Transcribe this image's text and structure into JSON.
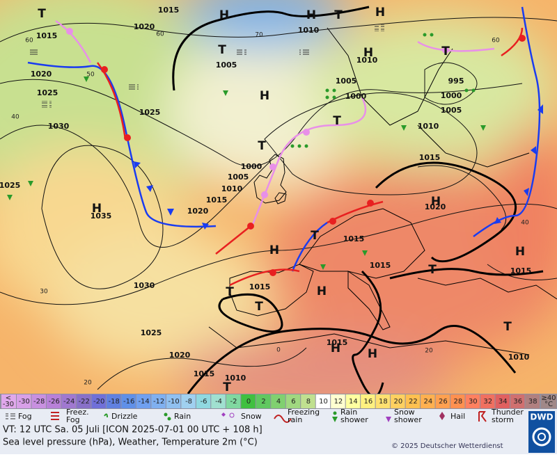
{
  "map": {
    "pressure_labels": [
      1015,
      1020,
      1015,
      1020,
      1025,
      1030,
      1025,
      1025,
      1035,
      1020,
      1015,
      1010,
      1005,
      1000,
      1005,
      1010,
      1010,
      1005,
      1000,
      995,
      1000,
      1005,
      1010,
      1015,
      1020,
      1015,
      1015,
      1015,
      1030,
      1025,
      1020,
      1015,
      1010,
      1015,
      1015,
      1010
    ],
    "latitude_labels": [
      60,
      70,
      60,
      50,
      40,
      30,
      20,
      60,
      40,
      20,
      0
    ],
    "system_labels": [
      "H",
      "H",
      "T",
      "H",
      "T",
      "T",
      "H",
      "H",
      "T",
      "T",
      "H",
      "H",
      "T",
      "H",
      "T",
      "H",
      "T",
      "T",
      "H",
      "H",
      "H",
      "T",
      "T",
      "T"
    ]
  },
  "scale": {
    "first_cell": {
      "top": "<",
      "bottom": "-30",
      "color": "#e0a8ec"
    },
    "cells": [
      {
        "label": -30,
        "color": "#d8a0e8"
      },
      {
        "label": -28,
        "color": "#c890e0"
      },
      {
        "label": -26,
        "color": "#b880d8"
      },
      {
        "label": -24,
        "color": "#a078d0"
      },
      {
        "label": -22,
        "color": "#8870c8"
      },
      {
        "label": -20,
        "color": "#7070d8"
      },
      {
        "label": -18,
        "color": "#6080e0"
      },
      {
        "label": -16,
        "color": "#6090e8"
      },
      {
        "label": -14,
        "color": "#70a0f0"
      },
      {
        "label": -12,
        "color": "#80b0f0"
      },
      {
        "label": -10,
        "color": "#90c0f0"
      },
      {
        "label": -8,
        "color": "#a0d0f0"
      },
      {
        "label": -6,
        "color": "#90d8e0"
      },
      {
        "label": -4,
        "color": "#a0e0d0"
      },
      {
        "label": -2,
        "color": "#80d8a0"
      },
      {
        "label": 0,
        "color": "#40c040"
      },
      {
        "label": 2,
        "color": "#60c860"
      },
      {
        "label": 4,
        "color": "#80d070"
      },
      {
        "label": 6,
        "color": "#a0d880"
      },
      {
        "label": 8,
        "color": "#c0e090"
      },
      {
        "label": 10,
        "color": "#ffffff"
      },
      {
        "label": 12,
        "color": "#ffffd0"
      },
      {
        "label": 14,
        "color": "#ffffa0"
      },
      {
        "label": 16,
        "color": "#fff080"
      },
      {
        "label": 18,
        "color": "#ffe070"
      },
      {
        "label": 20,
        "color": "#ffd060"
      },
      {
        "label": 22,
        "color": "#ffc050"
      },
      {
        "label": 24,
        "color": "#ffb050"
      },
      {
        "label": 26,
        "color": "#ffa050"
      },
      {
        "label": 28,
        "color": "#ff9050"
      },
      {
        "label": 30,
        "color": "#ff8060"
      },
      {
        "label": 32,
        "color": "#f07060"
      },
      {
        "label": 34,
        "color": "#e06060"
      },
      {
        "label": 36,
        "color": "#d07070"
      },
      {
        "label": 38,
        "color": "#b08080"
      }
    ],
    "last_cell": {
      "top": "≥40",
      "bottom": "°C",
      "color": "#a08888"
    }
  },
  "legend": [
    {
      "lines": [
        "Fog"
      ]
    },
    {
      "lines": [
        "Freez.",
        "Fog"
      ]
    },
    {
      "lines": [
        "Drizzle"
      ]
    },
    {
      "lines": [
        "Rain"
      ]
    },
    {
      "lines": [
        "Snow"
      ]
    },
    {
      "lines": [
        "Freezing",
        "rain"
      ]
    },
    {
      "lines": [
        "Rain",
        "shower"
      ]
    },
    {
      "lines": [
        "Snow",
        "shower"
      ]
    },
    {
      "lines": [
        "Hail"
      ]
    },
    {
      "lines": [
        "Thunder",
        "storm"
      ]
    }
  ],
  "footer": {
    "valid_time": "VT: 12 UTC Sa.  05 Juli [ICON 2025-07-01  00 UTC + 108 h]",
    "description": "Sea level pressure (hPa), Weather, Temperature 2m (°C)",
    "copyright": "© 2025 Deutscher Wetterdienst",
    "logo": "DWD"
  }
}
